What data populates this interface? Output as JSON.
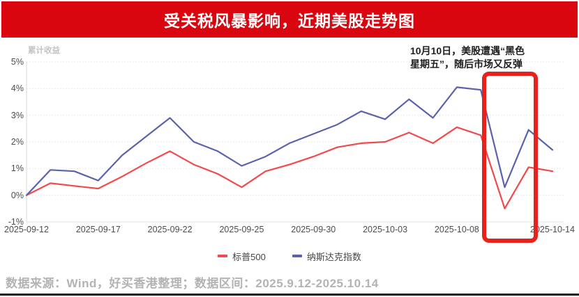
{
  "banner": {
    "title": "受关税风暴影响，近期美股走势图",
    "bg_color": "#d9060f"
  },
  "chart_data": {
    "type": "line",
    "title": "累计收益",
    "x": [
      "2025-09-12",
      "2025-09-15",
      "2025-09-16",
      "2025-09-17",
      "2025-09-18",
      "2025-09-19",
      "2025-09-22",
      "2025-09-23",
      "2025-09-24",
      "2025-09-25",
      "2025-09-26",
      "2025-09-29",
      "2025-09-30",
      "2025-10-01",
      "2025-10-02",
      "2025-10-03",
      "2025-10-06",
      "2025-10-07",
      "2025-10-08",
      "2025-10-09",
      "2025-10-10",
      "2025-10-13",
      "2025-10-14"
    ],
    "series": [
      {
        "name": "标普500",
        "color": "#f2494a",
        "values": [
          0,
          0.45,
          0.35,
          0.25,
          0.7,
          1.2,
          1.65,
          1.15,
          0.8,
          0.3,
          0.9,
          1.15,
          1.45,
          1.8,
          1.95,
          2.0,
          2.35,
          1.95,
          2.55,
          2.25,
          -0.5,
          1.05,
          0.9
        ]
      },
      {
        "name": "纳斯达克指数",
        "color": "#5a62ab",
        "values": [
          0,
          0.95,
          0.9,
          0.55,
          1.5,
          2.2,
          2.9,
          2.0,
          1.65,
          1.1,
          1.45,
          1.95,
          2.3,
          2.65,
          3.15,
          2.85,
          3.6,
          2.9,
          4.05,
          3.95,
          0.3,
          2.45,
          1.7
        ]
      }
    ],
    "ylabel": "累计收益",
    "xlabel": "",
    "ylim": [
      -1,
      5
    ],
    "ytick_labels": [
      "5%",
      "4%",
      "3%",
      "2%",
      "1%",
      "0%",
      "-1%"
    ],
    "ytick_values": [
      5,
      4,
      3,
      2,
      1,
      0,
      -1
    ],
    "xtick_labels": [
      "2025-09-12",
      "2025-09-17",
      "2025-09-22",
      "2025-09-25",
      "2025-09-30",
      "2025-10-03",
      "2025-10-08",
      "2025-10-14"
    ],
    "xtick_indices": [
      0,
      3,
      6,
      9,
      12,
      15,
      18,
      22
    ],
    "grid": "horizontal-dotted",
    "legend_position": "bottom-center"
  },
  "annotation": {
    "text": "10月10日，美股遭遇“黑色\n星期五”，随后市场又反弹"
  },
  "highlight": {
    "color": "#e8211c"
  },
  "footer": {
    "source": "数据来源：Wind，好买香港整理；数据区间：2025.9.12-2025.10.14"
  }
}
